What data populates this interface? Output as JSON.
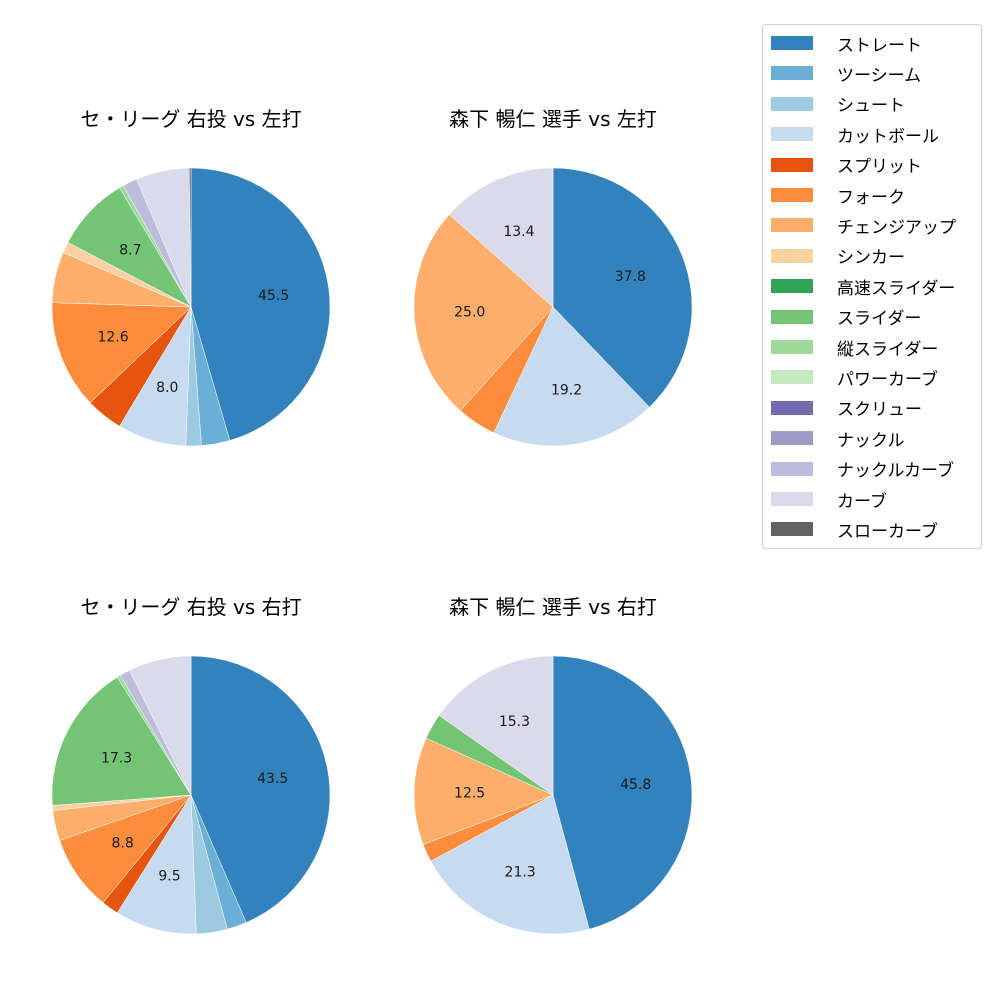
{
  "legend": {
    "items": [
      {
        "label": "ストレート",
        "color": "#3182bd"
      },
      {
        "label": "ツーシーム",
        "color": "#6baed6"
      },
      {
        "label": "シュート",
        "color": "#9ecae1"
      },
      {
        "label": "カットボール",
        "color": "#c6dbef"
      },
      {
        "label": "スプリット",
        "color": "#e6550d"
      },
      {
        "label": "フォーク",
        "color": "#fd8d3c"
      },
      {
        "label": "チェンジアップ",
        "color": "#fdae6b"
      },
      {
        "label": "シンカー",
        "color": "#fdd0a2"
      },
      {
        "label": "高速スライダー",
        "color": "#31a354"
      },
      {
        "label": "スライダー",
        "color": "#74c476"
      },
      {
        "label": "縦スライダー",
        "color": "#a1d99b"
      },
      {
        "label": "パワーカーブ",
        "color": "#c7e9c0"
      },
      {
        "label": "スクリュー",
        "color": "#756bb1"
      },
      {
        "label": "ナックル",
        "color": "#9e9ac8"
      },
      {
        "label": "ナックルカーブ",
        "color": "#bcbddc"
      },
      {
        "label": "カーブ",
        "color": "#dadaeb"
      },
      {
        "label": "スローカーブ",
        "color": "#636363"
      }
    ]
  },
  "chart_data": [
    {
      "type": "pie",
      "title": "セ・リーグ 右投 vs 左打",
      "categories": [
        "ストレート",
        "ツーシーム",
        "シュート",
        "カットボール",
        "スプリット",
        "フォーク",
        "チェンジアップ",
        "シンカー",
        "スライダー",
        "縦スライダー",
        "ナックルカーブ",
        "カーブ",
        "スローカーブ"
      ],
      "values": [
        45.5,
        3.3,
        1.8,
        8.0,
        4.3,
        12.6,
        5.9,
        1.3,
        8.7,
        0.5,
        1.7,
        6.2,
        0.2
      ],
      "labels_shown": [
        "45.5",
        "8.0",
        "12.6",
        "8.7"
      ]
    },
    {
      "type": "pie",
      "title": "森下 暢仁 選手 vs 左打",
      "categories": [
        "ストレート",
        "カットボール",
        "フォーク",
        "チェンジアップ",
        "カーブ"
      ],
      "values": [
        37.8,
        19.2,
        4.6,
        25.0,
        13.4
      ],
      "labels_shown": [
        "37.8",
        "19.2",
        "25.0",
        "13.4"
      ]
    },
    {
      "type": "pie",
      "title": "セ・リーグ 右投 vs 右打",
      "categories": [
        "ストレート",
        "ツーシーム",
        "シュート",
        "カットボール",
        "スプリット",
        "フォーク",
        "チェンジアップ",
        "シンカー",
        "スライダー",
        "縦スライダー",
        "ナックルカーブ",
        "カーブ"
      ],
      "values": [
        43.5,
        2.3,
        3.6,
        9.5,
        2.0,
        8.8,
        3.5,
        0.6,
        17.3,
        0.4,
        1.2,
        7.3
      ],
      "labels_shown": [
        "43.5",
        "9.5",
        "8.8",
        "17.3"
      ]
    },
    {
      "type": "pie",
      "title": "森下 暢仁 選手 vs 右打",
      "categories": [
        "ストレート",
        "カットボール",
        "フォーク",
        "チェンジアップ",
        "スライダー",
        "カーブ"
      ],
      "values": [
        45.8,
        21.3,
        2.1,
        12.5,
        3.0,
        15.3
      ],
      "labels_shown": [
        "45.8",
        "21.3",
        "12.5",
        "15.3"
      ]
    }
  ]
}
